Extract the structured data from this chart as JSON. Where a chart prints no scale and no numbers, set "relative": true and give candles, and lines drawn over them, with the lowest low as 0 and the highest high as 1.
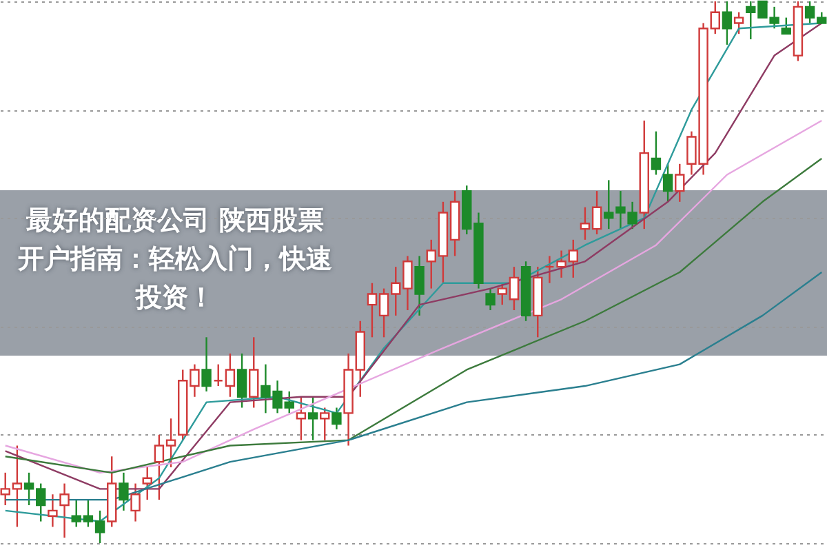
{
  "chart_data": {
    "type": "candlestick",
    "title": "最好的配资公司 陕西股票开户指南：轻松入门，快速投资！",
    "relative": true,
    "grid": "y",
    "categories": [
      null,
      null,
      null,
      null,
      null,
      null,
      null,
      null,
      null,
      null,
      null,
      null,
      null,
      null,
      null,
      null,
      null,
      null,
      null,
      null,
      null,
      null,
      null,
      null,
      null,
      null,
      null,
      null,
      null,
      null,
      null,
      null,
      null,
      null,
      null,
      null,
      null,
      null,
      null,
      null,
      null,
      null,
      null,
      null,
      null,
      null,
      null,
      null,
      null,
      null,
      null,
      null,
      null,
      null,
      null,
      null,
      null,
      null,
      null,
      null,
      null,
      null,
      null,
      null,
      null,
      null,
      null,
      null,
      null,
      null
    ],
    "ohlc": [
      [
        0.09,
        0.13,
        0.07,
        0.1
      ],
      [
        0.1,
        0.18,
        0.03,
        0.11
      ],
      [
        0.11,
        0.13,
        0.07,
        0.1
      ],
      [
        0.1,
        0.11,
        0.04,
        0.07
      ],
      [
        0.05,
        0.09,
        0.03,
        0.06
      ],
      [
        0.07,
        0.11,
        0.01,
        0.09
      ],
      [
        0.05,
        0.08,
        0.03,
        0.04
      ],
      [
        0.05,
        0.08,
        0.03,
        0.04
      ],
      [
        0.04,
        0.06,
        0,
        0.02
      ],
      [
        0.04,
        0.16,
        0.03,
        0.11
      ],
      [
        0.11,
        0.13,
        0.06,
        0.08
      ],
      [
        0.06,
        0.11,
        0.04,
        0.09
      ],
      [
        0.11,
        0.14,
        0.08,
        0.12
      ],
      [
        0.15,
        0.2,
        0.08,
        0.18
      ],
      [
        0.18,
        0.23,
        0.14,
        0.19
      ],
      [
        0.2,
        0.32,
        0.19,
        0.3
      ],
      [
        0.29,
        0.33,
        0.27,
        0.32
      ],
      [
        0.32,
        0.38,
        0.28,
        0.29
      ],
      [
        0.3,
        0.33,
        0.29,
        0.3
      ],
      [
        0.29,
        0.35,
        0.27,
        0.32
      ],
      [
        0.32,
        0.35,
        0.25,
        0.27
      ],
      [
        0.27,
        0.38,
        0.25,
        0.32
      ],
      [
        0.29,
        0.33,
        0.24,
        0.27
      ],
      [
        0.28,
        0.3,
        0.24,
        0.25
      ],
      [
        0.26,
        0.28,
        0.24,
        0.25
      ],
      [
        0.23,
        0.27,
        0.19,
        0.24
      ],
      [
        0.24,
        0.27,
        0.19,
        0.23
      ],
      [
        0.23,
        0.25,
        0.19,
        0.24
      ],
      [
        0.24,
        0.25,
        0.21,
        0.22
      ],
      [
        0.24,
        0.35,
        0.18,
        0.32
      ],
      [
        0.32,
        0.41,
        0.27,
        0.39
      ],
      [
        0.44,
        0.48,
        0.38,
        0.46
      ],
      [
        0.42,
        0.47,
        0.38,
        0.46
      ],
      [
        0.46,
        0.51,
        0.42,
        0.48
      ],
      [
        0.47,
        0.53,
        0.43,
        0.52
      ],
      [
        0.51,
        0.53,
        0.42,
        0.46
      ],
      [
        0.52,
        0.56,
        0.47,
        0.54
      ],
      [
        0.53,
        0.63,
        0.48,
        0.61
      ],
      [
        0.56,
        0.65,
        0.53,
        0.63
      ],
      [
        0.65,
        0.66,
        0.57,
        0.58
      ],
      [
        0.59,
        0.61,
        0.47,
        0.48
      ],
      [
        0.46,
        0.47,
        0.43,
        0.44
      ],
      [
        0.46,
        0.48,
        0.44,
        0.47
      ],
      [
        0.45,
        0.51,
        0.43,
        0.49
      ],
      [
        0.51,
        0.52,
        0.41,
        0.42
      ],
      [
        0.42,
        0.51,
        0.38,
        0.49
      ],
      [
        0.51,
        0.53,
        0.48,
        0.51
      ],
      [
        0.51,
        0.54,
        0.49,
        0.52
      ],
      [
        0.52,
        0.56,
        0.49,
        0.54
      ],
      [
        0.58,
        0.62,
        0.56,
        0.59
      ],
      [
        0.58,
        0.65,
        0.57,
        0.62
      ],
      [
        0.61,
        0.67,
        0.58,
        0.6
      ],
      [
        0.62,
        0.65,
        0.58,
        0.61
      ],
      [
        0.61,
        0.63,
        0.58,
        0.59
      ],
      [
        0.61,
        0.78,
        0.58,
        0.72
      ],
      [
        0.71,
        0.76,
        0.68,
        0.69
      ],
      [
        0.68,
        0.7,
        0.63,
        0.65
      ],
      [
        0.65,
        0.7,
        0.63,
        0.68
      ],
      [
        0.7,
        0.76,
        0.68,
        0.75
      ],
      [
        0.7,
        0.96,
        0.68,
        0.95
      ],
      [
        0.95,
        1,
        0.94,
        0.98
      ],
      [
        0.98,
        1,
        0.92,
        0.95
      ],
      [
        0.96,
        0.98,
        0.94,
        0.97
      ],
      [
        0.99,
        1,
        0.93,
        0.98
      ],
      [
        1,
        1,
        0.97,
        0.97
      ],
      [
        0.97,
        0.99,
        0.95,
        0.96
      ],
      [
        0.95,
        0.97,
        0.94,
        0.94
      ],
      [
        0.9,
        1,
        0.89,
        0.99
      ],
      [
        0.99,
        1,
        0.96,
        0.97
      ],
      [
        0.97,
        0.98,
        0.96,
        0.96
      ]
    ],
    "series": [
      {
        "type": "line",
        "color": "#2e9b9b",
        "values": [
          0.06,
          null,
          null,
          null,
          null,
          null,
          null,
          null,
          0.04,
          null,
          null,
          null,
          null,
          0.12,
          null,
          null,
          null,
          0.26,
          null,
          null,
          null,
          null,
          null,
          0.27,
          null,
          null,
          null,
          null,
          0.24,
          null,
          null,
          null,
          0.36,
          null,
          null,
          null,
          null,
          0.48,
          null,
          null,
          null,
          null,
          null,
          0.48,
          null,
          null,
          null,
          null,
          null,
          0.55,
          null,
          null,
          null,
          null,
          0.6,
          null,
          null,
          null,
          0.8,
          null,
          null,
          null,
          0.95,
          null,
          null,
          null,
          null,
          null,
          null,
          0.96
        ]
      },
      {
        "type": "line",
        "color": "#8e3b63",
        "values": [
          0.17,
          null,
          null,
          null,
          null,
          null,
          null,
          null,
          0.1,
          null,
          null,
          null,
          null,
          0.1,
          null,
          null,
          null,
          null,
          null,
          0.26,
          null,
          null,
          null,
          null,
          null,
          0.27,
          null,
          null,
          null,
          0.27,
          null,
          null,
          null,
          null,
          null,
          0.44,
          null,
          null,
          null,
          null,
          null,
          0.47,
          null,
          null,
          null,
          null,
          null,
          null,
          null,
          0.52,
          null,
          null,
          null,
          null,
          null,
          null,
          0.63,
          null,
          null,
          null,
          0.72,
          null,
          null,
          null,
          null,
          0.9,
          null,
          null,
          null,
          0.96
        ]
      },
      {
        "type": "line",
        "color": "#e6a6e0",
        "values": [
          0.18,
          null,
          null,
          null,
          null,
          null,
          null,
          null,
          0.13,
          null,
          null,
          null,
          null,
          null,
          null,
          0.15,
          null,
          null,
          null,
          null,
          null,
          0.21,
          null,
          null,
          null,
          null,
          null,
          null,
          null,
          null,
          null,
          null,
          null,
          null,
          null,
          null,
          null,
          0.36,
          null,
          null,
          null,
          null,
          null,
          null,
          null,
          null,
          null,
          0.45,
          null,
          null,
          null,
          null,
          null,
          null,
          null,
          0.55,
          null,
          null,
          null,
          null,
          null,
          0.68,
          null,
          null,
          null,
          null,
          null,
          null,
          null,
          0.78
        ]
      },
      {
        "type": "line",
        "color": "#3c7a3c",
        "values": [
          0.16,
          null,
          null,
          null,
          null,
          null,
          null,
          null,
          null,
          0.13,
          null,
          null,
          null,
          null,
          null,
          null,
          null,
          null,
          null,
          0.18,
          null,
          null,
          null,
          null,
          null,
          null,
          null,
          null,
          null,
          0.19,
          null,
          null,
          null,
          null,
          null,
          null,
          null,
          null,
          null,
          0.32,
          null,
          null,
          null,
          null,
          null,
          null,
          null,
          null,
          null,
          0.41,
          null,
          null,
          null,
          null,
          null,
          null,
          null,
          0.5,
          null,
          null,
          null,
          null,
          null,
          null,
          0.63,
          null,
          null,
          null,
          null,
          0.71
        ]
      },
      {
        "type": "line",
        "color": "#2a7f8f",
        "values": [
          0.08,
          null,
          null,
          null,
          null,
          null,
          null,
          null,
          null,
          0.08,
          null,
          null,
          null,
          null,
          null,
          null,
          null,
          null,
          null,
          0.15,
          null,
          null,
          null,
          null,
          null,
          null,
          null,
          null,
          null,
          0.19,
          null,
          null,
          null,
          null,
          null,
          null,
          null,
          null,
          null,
          0.26,
          null,
          null,
          null,
          null,
          null,
          null,
          null,
          null,
          null,
          0.29,
          null,
          null,
          null,
          null,
          null,
          null,
          null,
          0.33,
          null,
          null,
          null,
          null,
          null,
          null,
          0.42,
          null,
          null,
          null,
          null,
          0.5
        ]
      }
    ]
  }
}
